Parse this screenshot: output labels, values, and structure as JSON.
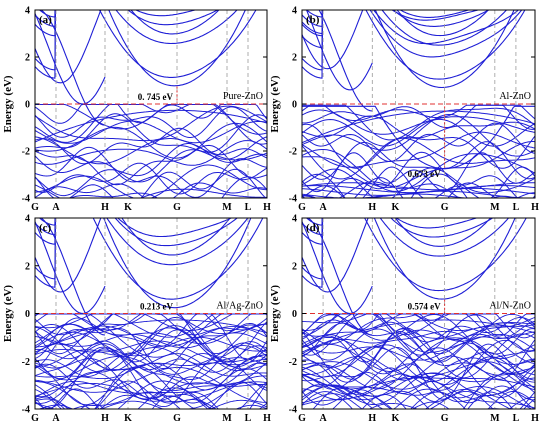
{
  "chart_data": [
    {
      "panel": "(a)",
      "type": "line",
      "sample": "Pure-ZnO",
      "gap_label": "0. 745  eV",
      "gap_ev": 0.745,
      "fermi_level": 0,
      "kpath": [
        "G",
        "A",
        "H",
        "K",
        "G",
        "M",
        "L",
        "H"
      ],
      "ylabel": "Energy (eV)",
      "ylim": [
        -4,
        4
      ],
      "yticks": [
        "-4",
        "-2",
        "0",
        "2",
        "4"
      ],
      "vb_density": "low"
    },
    {
      "panel": "(b)",
      "type": "line",
      "sample": "Al-ZnO",
      "gap_label": "0.673  eV",
      "gap_ev": 0.673,
      "fermi_level": 0,
      "kpath": [
        "G",
        "A",
        "H",
        "K",
        "G",
        "M",
        "L",
        "H"
      ],
      "ylabel": "Energy (eV)",
      "ylim": [
        -4,
        4
      ],
      "yticks": [
        "-4",
        "-2",
        "0",
        "2",
        "4"
      ],
      "vb_density": "low"
    },
    {
      "panel": "(c)",
      "type": "line",
      "sample": "Al/Ag-ZnO",
      "gap_label": "0.213 eV",
      "gap_ev": 0.213,
      "fermi_level": 0,
      "kpath": [
        "G",
        "A",
        "H",
        "K",
        "G",
        "M",
        "L",
        "H"
      ],
      "ylabel": "Energy (eV)",
      "ylim": [
        -4,
        4
      ],
      "yticks": [
        "-4",
        "-2",
        "0",
        "2",
        "4"
      ],
      "vb_density": "high"
    },
    {
      "panel": "(d)",
      "type": "line",
      "sample": "Al/N-ZnO",
      "gap_label": "0.574 eV",
      "gap_ev": 0.574,
      "fermi_level": 0,
      "kpath": [
        "G",
        "A",
        "H",
        "K",
        "G",
        "M",
        "L",
        "H"
      ],
      "ylabel": "Energy (eV)",
      "ylim": [
        -4,
        4
      ],
      "yticks": [
        "-4",
        "-2",
        "0",
        "2",
        "4"
      ],
      "vb_density": "high"
    }
  ],
  "colors": {
    "band": "#1f1fd6",
    "fermi": "#e03030",
    "kline": "#9a9a9a",
    "axis": "#000000"
  }
}
